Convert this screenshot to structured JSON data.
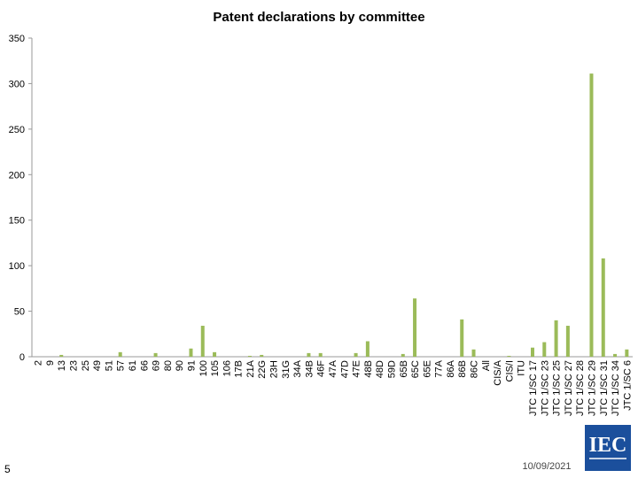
{
  "chart_data": {
    "type": "bar",
    "title": "Patent declarations by committee",
    "categories": [
      "2",
      "9",
      "13",
      "23",
      "25",
      "49",
      "51",
      "57",
      "61",
      "66",
      "69",
      "80",
      "90",
      "91",
      "100",
      "105",
      "106",
      "17B",
      "21A",
      "22G",
      "23H",
      "31G",
      "34A",
      "34B",
      "46F",
      "47A",
      "47D",
      "47E",
      "48B",
      "48D",
      "59D",
      "65B",
      "65C",
      "65E",
      "77A",
      "86A",
      "86B",
      "86C",
      "All",
      "CIS/A",
      "CIS/I",
      "ITU",
      "JTC 1/SC 17",
      "JTC 1/SC 23",
      "JTC 1/SC 25",
      "JTC 1/SC 27",
      "JTC 1/SC 28",
      "JTC 1/SC 29",
      "JTC 1/SC 31",
      "JTC 1/SC 34",
      "JTC 1/SC 6"
    ],
    "values": [
      0,
      0,
      2,
      0,
      0,
      0,
      0,
      5,
      0,
      0,
      4,
      0,
      0,
      9,
      34,
      5,
      0,
      0,
      1,
      2,
      0,
      0,
      0,
      4,
      4,
      0,
      0,
      4,
      17,
      0,
      0,
      3,
      64,
      0,
      0,
      0,
      41,
      8,
      0,
      0,
      1,
      0,
      10,
      16,
      40,
      34,
      0,
      311,
      108,
      3,
      8
    ],
    "color": "#9bbb59",
    "ylim": [
      0,
      350
    ],
    "yticks": [
      0,
      50,
      100,
      150,
      200,
      250,
      300,
      350
    ],
    "grid": false
  },
  "slide": {
    "page_number": "5",
    "date": "10/09/2021",
    "logo": "IEC"
  }
}
